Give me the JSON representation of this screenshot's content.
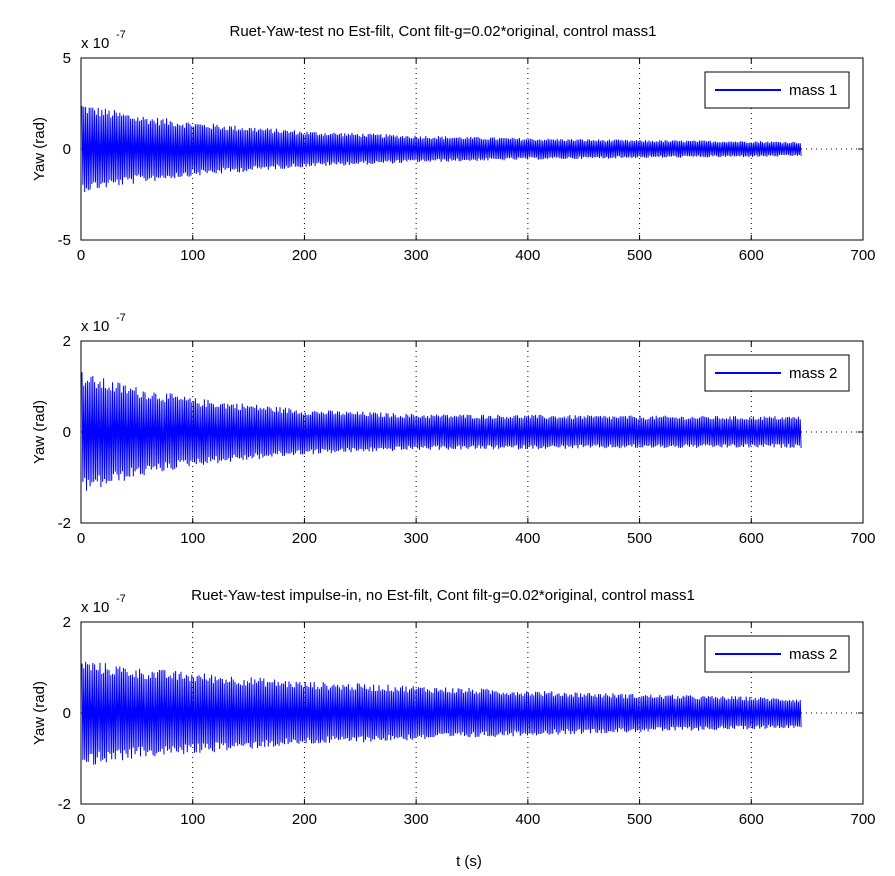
{
  "figure": {
    "xlabel": "t (s)"
  },
  "chart_data": [
    {
      "type": "line",
      "title": "Ruet-Yaw-test no Est-filt, Cont filt-g=0.02*original, control mass1",
      "ylabel": "Yaw (rad)",
      "xlim": [
        0,
        700
      ],
      "ylim": [
        -5,
        5
      ],
      "xticks": [
        0,
        100,
        200,
        300,
        400,
        500,
        600,
        700
      ],
      "yticks": [
        -5,
        0,
        5
      ],
      "y_scale_factor": "x 10",
      "y_scale_exponent": "-7",
      "grid": true,
      "legend_position": "top-right",
      "series": [
        {
          "name": "mass 1",
          "color": "#0000ff",
          "description": "oscillation envelope (upper/lower bounds of signal, units 1e-7 rad)",
          "envelope_t": [
            0,
            10,
            50,
            100,
            200,
            300,
            400,
            500,
            600,
            645
          ],
          "envelope_upper": [
            2.6,
            2.4,
            1.9,
            1.5,
            1.0,
            0.75,
            0.6,
            0.5,
            0.45,
            0.4
          ],
          "envelope_lower": [
            -2.4,
            -2.3,
            -1.9,
            -1.5,
            -1.0,
            -0.75,
            -0.6,
            -0.5,
            -0.45,
            -0.4
          ],
          "end_t": 645
        }
      ]
    },
    {
      "type": "line",
      "title": "",
      "ylabel": "Yaw (rad)",
      "xlim": [
        0,
        700
      ],
      "ylim": [
        -2,
        2
      ],
      "xticks": [
        0,
        100,
        200,
        300,
        400,
        500,
        600,
        700
      ],
      "yticks": [
        -2,
        0,
        2
      ],
      "y_scale_factor": "x 10",
      "y_scale_exponent": "-7",
      "grid": true,
      "legend_position": "top-right",
      "series": [
        {
          "name": "mass 2",
          "color": "#0000ff",
          "envelope_t": [
            0,
            10,
            50,
            100,
            200,
            300,
            400,
            500,
            600,
            645
          ],
          "envelope_upper": [
            1.35,
            1.25,
            1.0,
            0.75,
            0.5,
            0.4,
            0.38,
            0.36,
            0.35,
            0.35
          ],
          "envelope_lower": [
            -1.35,
            -1.3,
            -1.0,
            -0.75,
            -0.5,
            -0.4,
            -0.38,
            -0.36,
            -0.35,
            -0.35
          ],
          "end_t": 645
        }
      ]
    },
    {
      "type": "line",
      "title": "Ruet-Yaw-test impulse-in, no Est-filt, Cont filt-g=0.02*original, control mass1",
      "ylabel": "Yaw (rad)",
      "xlim": [
        0,
        700
      ],
      "ylim": [
        -2,
        2
      ],
      "xticks": [
        0,
        100,
        200,
        300,
        400,
        500,
        600,
        700
      ],
      "yticks": [
        -2,
        0,
        2
      ],
      "y_scale_factor": "x 10",
      "y_scale_exponent": "-7",
      "grid": true,
      "legend_position": "top-right",
      "series": [
        {
          "name": "mass 2",
          "color": "#0000ff",
          "envelope_t": [
            0,
            10,
            50,
            100,
            200,
            300,
            400,
            500,
            600,
            645
          ],
          "envelope_upper": [
            1.2,
            1.15,
            1.0,
            0.9,
            0.7,
            0.6,
            0.5,
            0.42,
            0.36,
            0.32
          ],
          "envelope_lower": [
            -1.2,
            -1.15,
            -1.0,
            -0.9,
            -0.7,
            -0.6,
            -0.5,
            -0.42,
            -0.36,
            -0.32
          ],
          "end_t": 645
        }
      ]
    }
  ]
}
